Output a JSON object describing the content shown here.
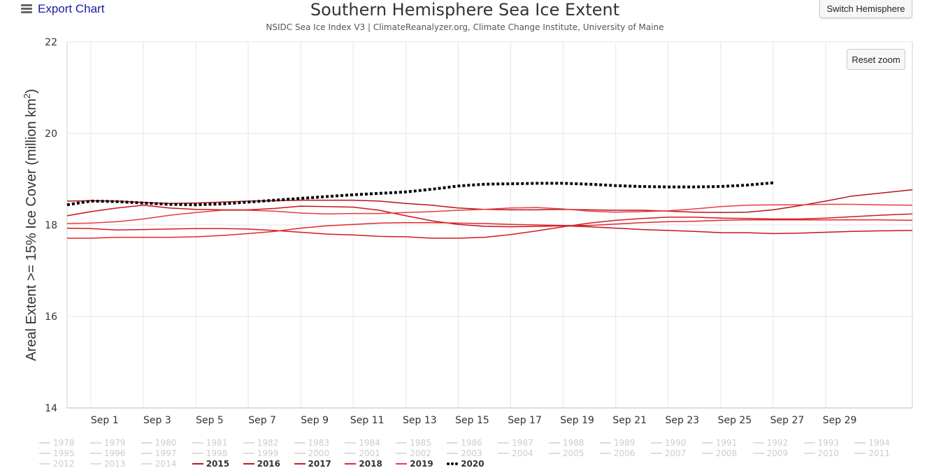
{
  "toolbar": {
    "export_label": "Export Chart",
    "switch_label": "Switch Hemisphere",
    "reset_label": "Reset zoom"
  },
  "chart_data": {
    "type": "line",
    "title": "Southern Hemisphere Sea Ice Extent",
    "subtitle": "NSIDC Sea Ice Index V3 | ClimateReanalyzer.org, Climate Change Institute, University of Maine",
    "ylabel": "Areal Extent >= 15% Ice Cover (million km²)",
    "xlabel": "",
    "ylim": [
      14,
      22
    ],
    "yticks": [
      14,
      16,
      18,
      20,
      22
    ],
    "xlim": [
      31.1,
      63.3
    ],
    "xticks": [
      {
        "x": 32,
        "label": "Sep 1"
      },
      {
        "x": 34,
        "label": "Sep 3"
      },
      {
        "x": 36,
        "label": "Sep 5"
      },
      {
        "x": 38,
        "label": "Sep 7"
      },
      {
        "x": 40,
        "label": "Sep 9"
      },
      {
        "x": 42,
        "label": "Sep 11"
      },
      {
        "x": 44,
        "label": "Sep 13"
      },
      {
        "x": 46,
        "label": "Sep 15"
      },
      {
        "x": 48,
        "label": "Sep 17"
      },
      {
        "x": 50,
        "label": "Sep 19"
      },
      {
        "x": 52,
        "label": "Sep 21"
      },
      {
        "x": 54,
        "label": "Sep 23"
      },
      {
        "x": 56,
        "label": "Sep 25"
      },
      {
        "x": 58,
        "label": "Sep 27"
      },
      {
        "x": 60,
        "label": "Sep 29"
      }
    ],
    "grid": true,
    "series": [
      {
        "name": "2015",
        "color": "#b5141a",
        "x": [
          31.1,
          32,
          33,
          34,
          35,
          36,
          37,
          38,
          39,
          40,
          41,
          42,
          43,
          44,
          45,
          46,
          47,
          48,
          49,
          50,
          51,
          52,
          53,
          54,
          55,
          56,
          57,
          58,
          59,
          60,
          61,
          62,
          63.3
        ],
        "values": [
          18.52,
          18.53,
          18.52,
          18.49,
          18.47,
          18.48,
          18.5,
          18.52,
          18.53,
          18.54,
          18.54,
          18.54,
          18.52,
          18.47,
          18.43,
          18.37,
          18.34,
          18.33,
          18.33,
          18.34,
          18.33,
          18.32,
          18.32,
          18.3,
          18.28,
          18.27,
          18.28,
          18.33,
          18.42,
          18.52,
          18.63,
          18.69,
          18.77
        ]
      },
      {
        "name": "2016",
        "color": "#c8141c",
        "x": [
          31.1,
          32,
          33,
          34,
          35,
          36,
          37,
          38,
          39,
          40,
          41,
          42,
          43,
          44,
          45,
          46,
          47,
          48,
          49,
          50,
          51,
          52,
          53,
          54,
          55,
          56,
          57,
          58,
          59,
          60,
          61,
          62,
          63.3
        ],
        "values": [
          18.2,
          18.29,
          18.37,
          18.43,
          18.37,
          18.34,
          18.33,
          18.33,
          18.36,
          18.41,
          18.4,
          18.39,
          18.32,
          18.2,
          18.09,
          18.01,
          17.97,
          17.96,
          17.97,
          17.98,
          17.96,
          17.93,
          17.9,
          17.88,
          17.86,
          17.83,
          17.83,
          17.81,
          17.82,
          17.84,
          17.86,
          17.87,
          17.88
        ]
      },
      {
        "name": "2017",
        "color": "#d41920",
        "x": [
          31.1,
          32,
          33,
          34,
          35,
          36,
          37,
          38,
          39,
          40,
          41,
          42,
          43,
          44,
          45,
          46,
          47,
          48,
          49,
          50,
          51,
          52,
          53,
          54,
          55,
          56,
          57,
          58,
          59,
          60,
          61,
          62,
          63.3
        ],
        "values": [
          17.93,
          17.92,
          17.89,
          17.9,
          17.91,
          17.92,
          17.92,
          17.91,
          17.88,
          17.84,
          17.8,
          17.78,
          17.75,
          17.74,
          17.71,
          17.71,
          17.73,
          17.79,
          17.87,
          17.96,
          18.04,
          18.1,
          18.14,
          18.17,
          18.17,
          18.15,
          18.14,
          18.13,
          18.13,
          18.15,
          18.18,
          18.21,
          18.24
        ]
      },
      {
        "name": "2018",
        "color": "#e0282d",
        "x": [
          31.1,
          32,
          33,
          34,
          35,
          36,
          37,
          38,
          39,
          40,
          41,
          42,
          43,
          44,
          45,
          46,
          47,
          48,
          49,
          50,
          51,
          52,
          53,
          54,
          55,
          56,
          57,
          58,
          59,
          60,
          61,
          62,
          63.3
        ],
        "values": [
          17.71,
          17.71,
          17.73,
          17.73,
          17.73,
          17.74,
          17.77,
          17.81,
          17.86,
          17.93,
          17.98,
          18.01,
          18.04,
          18.05,
          18.05,
          18.04,
          18.03,
          18.01,
          18.0,
          17.99,
          17.99,
          18.02,
          18.05,
          18.07,
          18.08,
          18.1,
          18.11,
          18.11,
          18.11,
          18.11,
          18.11,
          18.11,
          18.1
        ]
      },
      {
        "name": "2019",
        "color": "#ea3a3f",
        "x": [
          31.1,
          32,
          33,
          34,
          35,
          36,
          37,
          38,
          39,
          40,
          41,
          42,
          43,
          44,
          45,
          46,
          47,
          48,
          49,
          50,
          51,
          52,
          53,
          54,
          55,
          56,
          57,
          58,
          59,
          60,
          61,
          62,
          63.3
        ],
        "values": [
          18.03,
          18.04,
          18.07,
          18.13,
          18.21,
          18.27,
          18.32,
          18.32,
          18.3,
          18.26,
          18.24,
          18.25,
          18.25,
          18.27,
          18.29,
          18.32,
          18.34,
          18.37,
          18.38,
          18.35,
          18.3,
          18.28,
          18.29,
          18.31,
          18.35,
          18.4,
          18.43,
          18.44,
          18.44,
          18.45,
          18.45,
          18.44,
          18.43
        ]
      },
      {
        "name": "2020",
        "color": "#000000",
        "dashed": true,
        "x": [
          31.1,
          32,
          33,
          34,
          35,
          36,
          37,
          38,
          39,
          40,
          41,
          42,
          43,
          44,
          45,
          46,
          47,
          48,
          49,
          50,
          51,
          52,
          53,
          54,
          55,
          56,
          57,
          58
        ],
        "values": [
          18.44,
          18.52,
          18.51,
          18.48,
          18.45,
          18.44,
          18.46,
          18.5,
          18.54,
          18.58,
          18.62,
          18.66,
          18.69,
          18.72,
          18.78,
          18.85,
          18.89,
          18.9,
          18.91,
          18.91,
          18.89,
          18.86,
          18.84,
          18.83,
          18.83,
          18.84,
          18.87,
          18.92
        ]
      }
    ]
  },
  "legend": [
    "1978",
    "1979",
    "1980",
    "1981",
    "1982",
    "1983",
    "1984",
    "1985",
    "1986",
    "1987",
    "1988",
    "1989",
    "1990",
    "1991",
    "1992",
    "1993",
    "1994",
    "1995",
    "1996",
    "1997",
    "1998",
    "1999",
    "2000",
    "2001",
    "2002",
    "2003",
    "2004",
    "2005",
    "2006",
    "2007",
    "2008",
    "2009",
    "2010",
    "2011",
    "2012",
    "2013",
    "2014",
    "2015",
    "2016",
    "2017",
    "2018",
    "2019",
    "2020"
  ],
  "legend_active": [
    "2015",
    "2016",
    "2017",
    "2018",
    "2019",
    "2020"
  ]
}
